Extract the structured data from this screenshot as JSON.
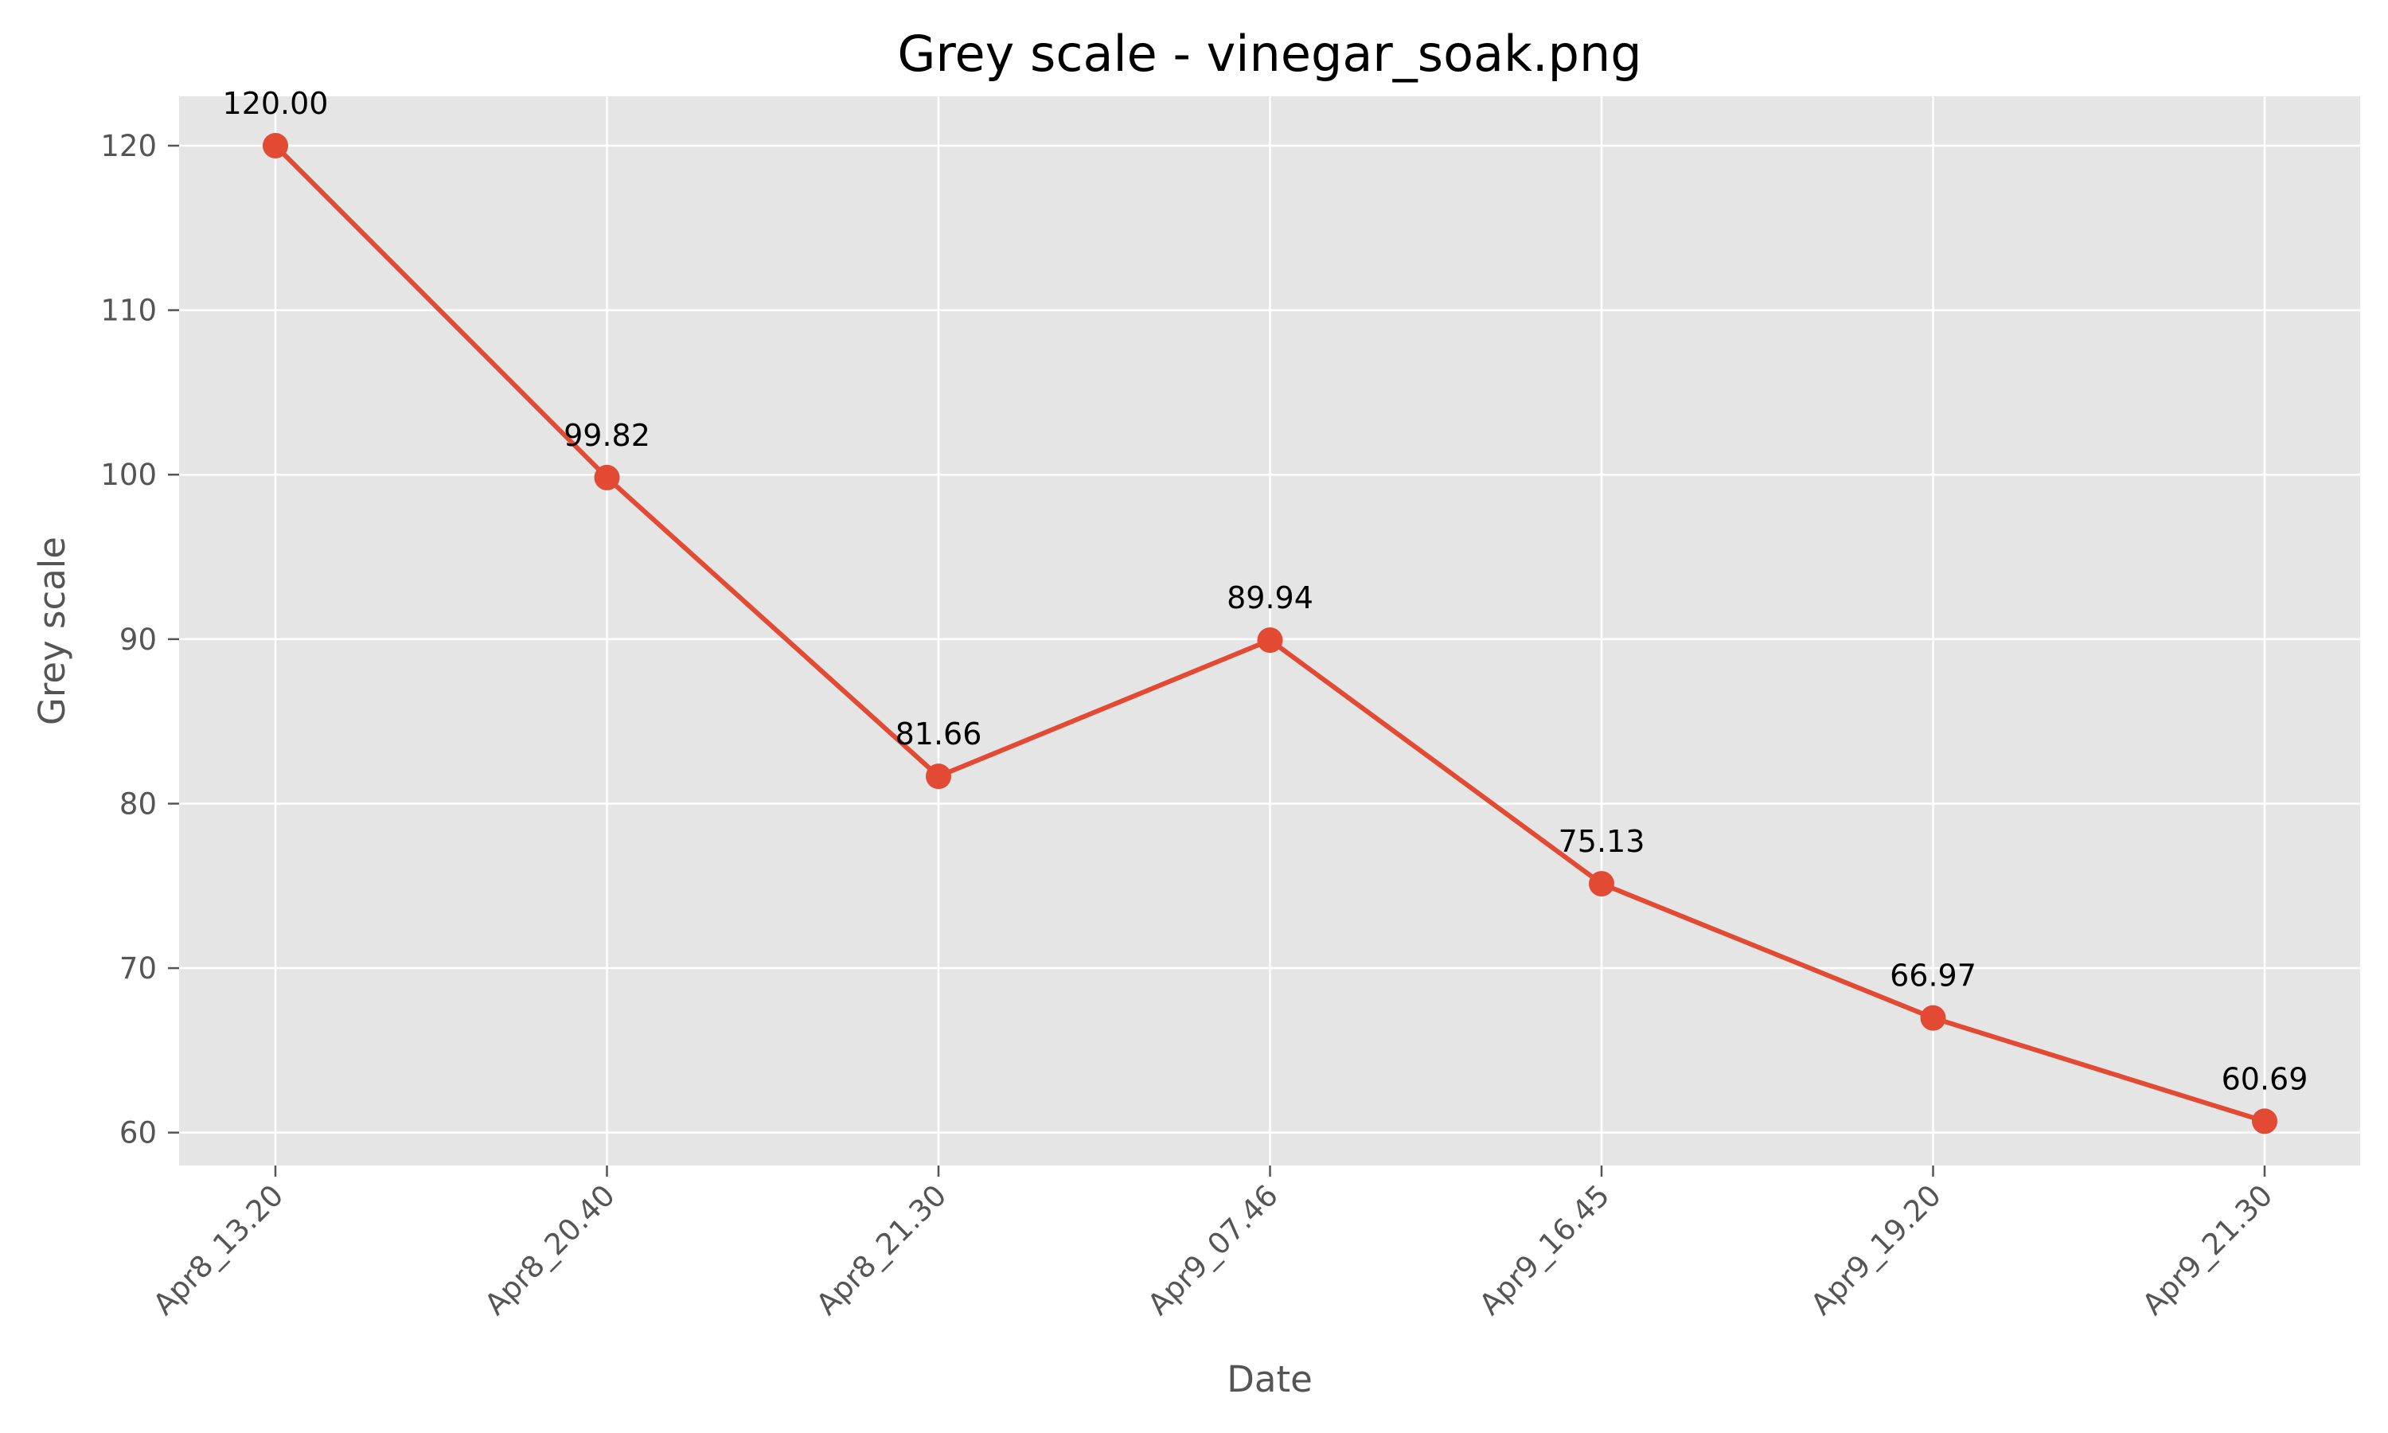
{
  "chart_data": {
    "type": "line",
    "title": "Grey scale - vinegar_soak.png",
    "xlabel": "Date",
    "ylabel": "Grey scale",
    "categories": [
      "Apr8_13.20",
      "Apr8_20.40",
      "Apr8_21.30",
      "Apr9_07.46",
      "Apr9_16.45",
      "Apr9_19.20",
      "Apr9_21.30"
    ],
    "values": [
      120.0,
      99.82,
      81.66,
      89.94,
      75.13,
      66.97,
      60.69
    ],
    "data_labels": [
      "120.00",
      "99.82",
      "81.66",
      "89.94",
      "75.13",
      "66.97",
      "60.69"
    ],
    "yticks": [
      60,
      70,
      80,
      90,
      100,
      110,
      120
    ],
    "ylim": [
      58,
      123
    ],
    "grid": true,
    "colors": {
      "plot_background": "#e5e5e5",
      "grid": "#ffffff",
      "line": "#e24a33",
      "tick_text": "#555555",
      "annotation_text": "#000000"
    }
  }
}
